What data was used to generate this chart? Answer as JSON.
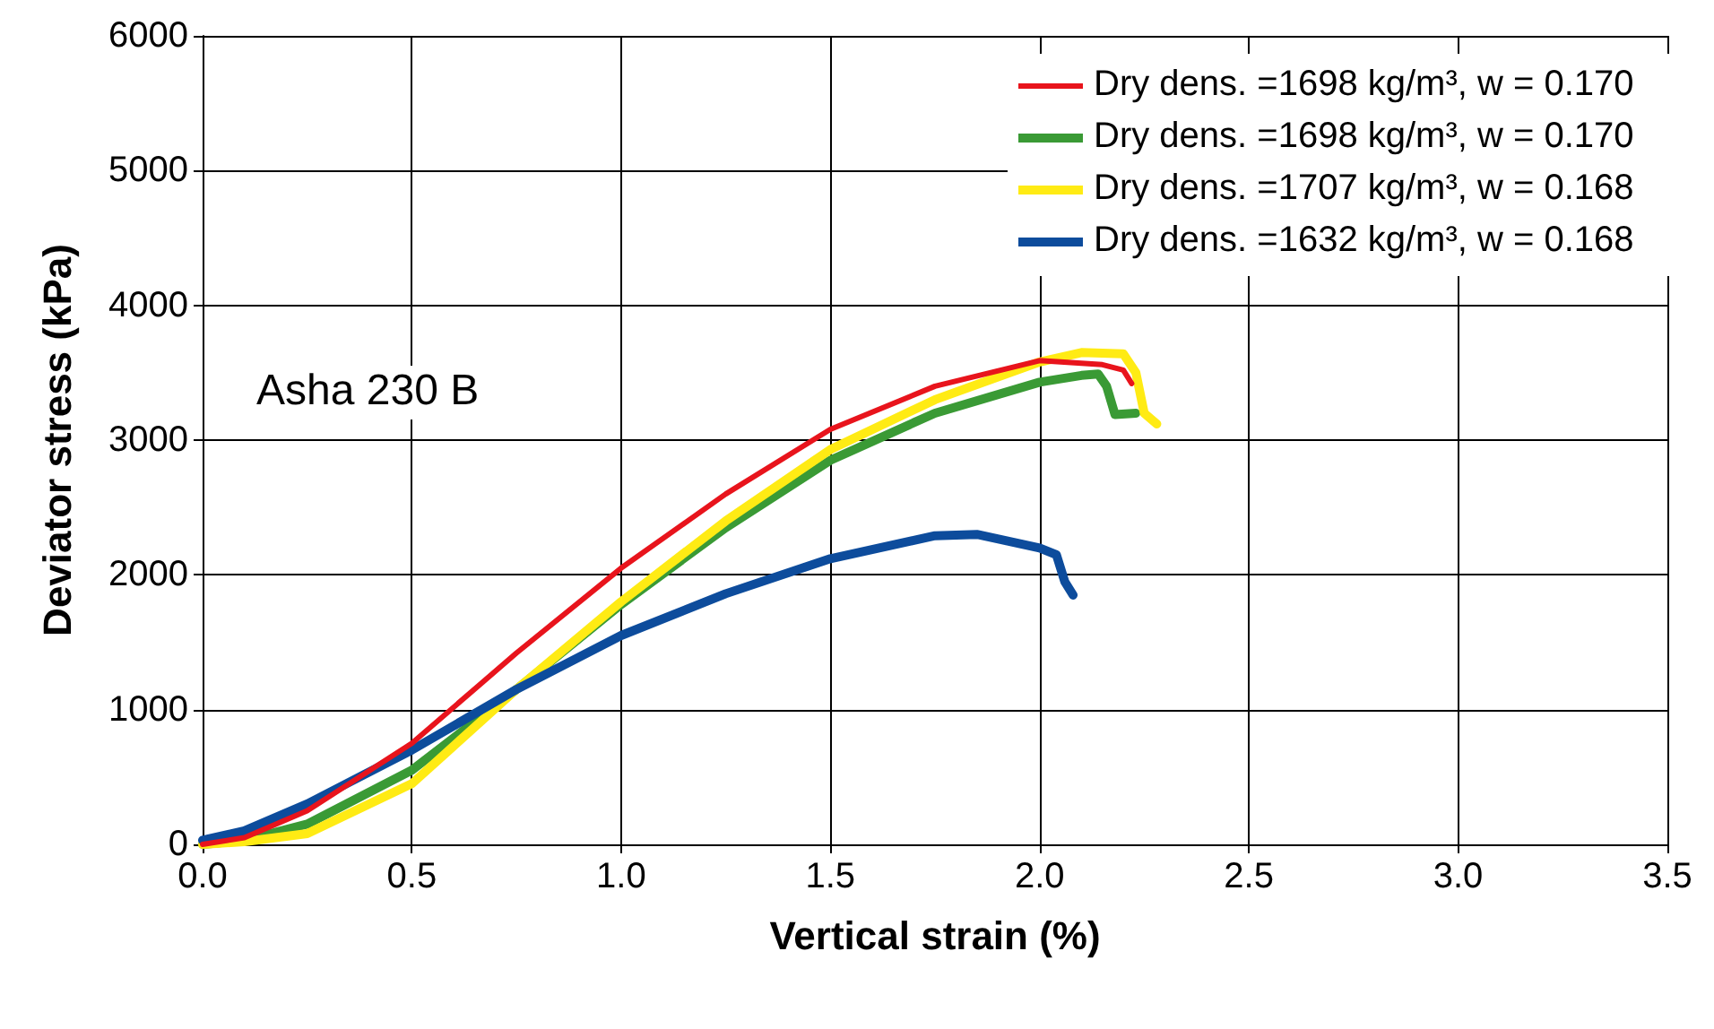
{
  "chart_data": {
    "type": "line",
    "xlabel": "Vertical strain (%)",
    "ylabel": "Deviator stress (kPa)",
    "annotations": [
      "Asha 230 B"
    ],
    "xlim": [
      0,
      3.5
    ],
    "xticks": [
      {
        "value": 0,
        "label": "0.0"
      },
      {
        "value": 0.5,
        "label": "0.5"
      },
      {
        "value": 1,
        "label": "1.0"
      },
      {
        "value": 1.5,
        "label": "1.5"
      },
      {
        "value": 2,
        "label": "2.0"
      },
      {
        "value": 2.5,
        "label": "2.5"
      },
      {
        "value": 3,
        "label": "3.0"
      },
      {
        "value": 3.5,
        "label": "3.5"
      }
    ],
    "ylim": [
      0,
      6000
    ],
    "yticks": [
      0,
      1000,
      2000,
      3000,
      4000,
      5000,
      6000
    ],
    "grid": true,
    "legend": "top right",
    "marker": "none",
    "line_style": "solid",
    "series": [
      {
        "name": "Dry dens. =1698 kg/m³, w = 0.170",
        "color": "#e8141c",
        "x": [
          0,
          0.1,
          0.25,
          0.5,
          0.75,
          1,
          1.25,
          1.5,
          1.75,
          2,
          2.1,
          2.15,
          2.2,
          2.22
        ],
        "values": [
          0,
          50,
          250,
          750,
          1420,
          2050,
          2600,
          3080,
          3400,
          3590,
          3570,
          3560,
          3520,
          3420
        ]
      },
      {
        "name": "Dry dens. =1698 kg/m³, w = 0.170",
        "color": "#3a9a35",
        "x": [
          0,
          0.1,
          0.25,
          0.5,
          0.75,
          1,
          1.25,
          1.5,
          1.75,
          2,
          2.1,
          2.14,
          2.16,
          2.18,
          2.23
        ],
        "values": [
          0,
          30,
          150,
          550,
          1150,
          1780,
          2350,
          2850,
          3200,
          3430,
          3480,
          3490,
          3400,
          3190,
          3200
        ]
      },
      {
        "name": "Dry dens. =1707 kg/m³, w = 0.168",
        "color": "#ffeb14",
        "x": [
          0,
          0.1,
          0.25,
          0.5,
          0.75,
          1,
          1.25,
          1.5,
          1.75,
          2,
          2.1,
          2.2,
          2.23,
          2.25,
          2.28
        ],
        "values": [
          0,
          20,
          80,
          450,
          1150,
          1800,
          2400,
          2930,
          3300,
          3580,
          3650,
          3640,
          3500,
          3200,
          3120
        ]
      },
      {
        "name": "Dry dens. =1632 kg/m³, w = 0.168",
        "color": "#0d4c9c",
        "x": [
          0,
          0.1,
          0.25,
          0.5,
          0.75,
          1,
          1.25,
          1.5,
          1.75,
          1.85,
          2,
          2.04,
          2.06,
          2.08
        ],
        "values": [
          30,
          100,
          300,
          700,
          1150,
          1550,
          1860,
          2120,
          2290,
          2300,
          2200,
          2150,
          1950,
          1850
        ]
      }
    ]
  }
}
